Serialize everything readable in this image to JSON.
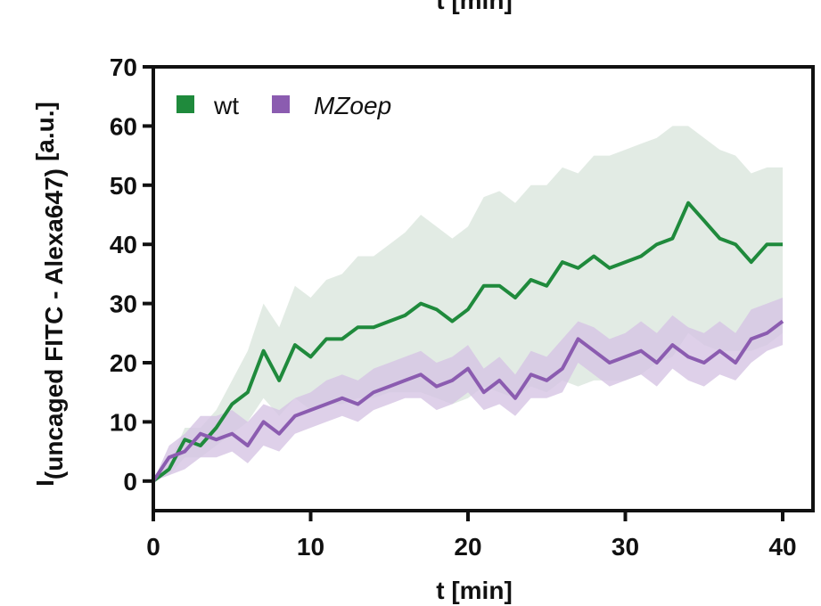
{
  "chart_data": {
    "type": "line",
    "top_cut_label": "t [min]",
    "xlabel": "t [min]",
    "ylabel_main": "I",
    "ylabel_sub": "(uncaged FITC - Alexa647)",
    "ylabel_units": "[a.u.]",
    "xlim": [
      0,
      40
    ],
    "ylim": [
      -5,
      70
    ],
    "xticks": [
      0,
      10,
      20,
      30,
      40
    ],
    "yticks": [
      0,
      10,
      20,
      30,
      40,
      50,
      60,
      70
    ],
    "xtick_labels": [
      "0",
      "10",
      "20",
      "30",
      "40"
    ],
    "ytick_labels": [
      "0",
      "10",
      "20",
      "30",
      "40",
      "50",
      "60",
      "70"
    ],
    "legend_position": "top-left",
    "grid": false,
    "series": [
      {
        "name": "wt",
        "italic": false,
        "color": "#1f8a3c",
        "band_color": "#dde8df",
        "x": [
          0,
          1,
          2,
          3,
          4,
          5,
          6,
          7,
          8,
          9,
          10,
          11,
          12,
          13,
          14,
          15,
          16,
          17,
          18,
          19,
          20,
          21,
          22,
          23,
          24,
          25,
          26,
          27,
          28,
          29,
          30,
          31,
          32,
          33,
          34,
          35,
          36,
          37,
          38,
          39,
          40
        ],
        "y": [
          0,
          2,
          7,
          6,
          9,
          13,
          15,
          22,
          17,
          23,
          21,
          24,
          24,
          26,
          26,
          27,
          28,
          30,
          29,
          27,
          29,
          33,
          33,
          31,
          34,
          33,
          37,
          36,
          38,
          36,
          37,
          38,
          40,
          41,
          47,
          44,
          41,
          40,
          37,
          40,
          40
        ],
        "lower": [
          0,
          1,
          4,
          4,
          6,
          8,
          10,
          14,
          11,
          14,
          12,
          13,
          13,
          14,
          14,
          15,
          15,
          15,
          14,
          13,
          14,
          16,
          15,
          14,
          16,
          15,
          17,
          16,
          17,
          17,
          17,
          18,
          20,
          21,
          25,
          23,
          22,
          22,
          22,
          23,
          25
        ],
        "upper": [
          0,
          3,
          9,
          9,
          12,
          17,
          22,
          30,
          26,
          33,
          31,
          34,
          35,
          38,
          38,
          40,
          42,
          45,
          43,
          41,
          43,
          48,
          49,
          47,
          50,
          50,
          53,
          52,
          55,
          55,
          56,
          57,
          58,
          60,
          60,
          58,
          56,
          55,
          52,
          53,
          53
        ]
      },
      {
        "name": "MZoep",
        "italic": true,
        "color": "#8b5cb0",
        "band_color": "#d6c4e3",
        "x": [
          0,
          1,
          2,
          3,
          4,
          5,
          6,
          7,
          8,
          9,
          10,
          11,
          12,
          13,
          14,
          15,
          16,
          17,
          18,
          19,
          20,
          21,
          22,
          23,
          24,
          25,
          26,
          27,
          28,
          29,
          30,
          31,
          32,
          33,
          34,
          35,
          36,
          37,
          38,
          39,
          40
        ],
        "y": [
          0,
          4,
          5,
          8,
          7,
          8,
          6,
          10,
          8,
          11,
          12,
          13,
          14,
          13,
          15,
          16,
          17,
          18,
          16,
          17,
          19,
          15,
          17,
          14,
          18,
          17,
          19,
          24,
          22,
          20,
          21,
          22,
          20,
          23,
          21,
          20,
          22,
          20,
          24,
          25,
          27
        ],
        "lower": [
          0,
          1,
          2,
          4,
          4,
          5,
          3,
          6,
          5,
          8,
          9,
          10,
          11,
          10,
          12,
          13,
          14,
          14,
          12,
          13,
          15,
          12,
          13,
          11,
          14,
          14,
          15,
          20,
          18,
          16,
          17,
          18,
          16,
          19,
          17,
          16,
          18,
          17,
          20,
          22,
          23
        ],
        "upper": [
          0,
          6,
          8,
          11,
          11,
          12,
          10,
          13,
          12,
          14,
          15,
          17,
          18,
          17,
          19,
          20,
          21,
          22,
          20,
          21,
          23,
          19,
          21,
          18,
          22,
          21,
          24,
          27,
          26,
          24,
          25,
          27,
          25,
          28,
          26,
          25,
          27,
          25,
          29,
          30,
          31
        ]
      }
    ]
  }
}
